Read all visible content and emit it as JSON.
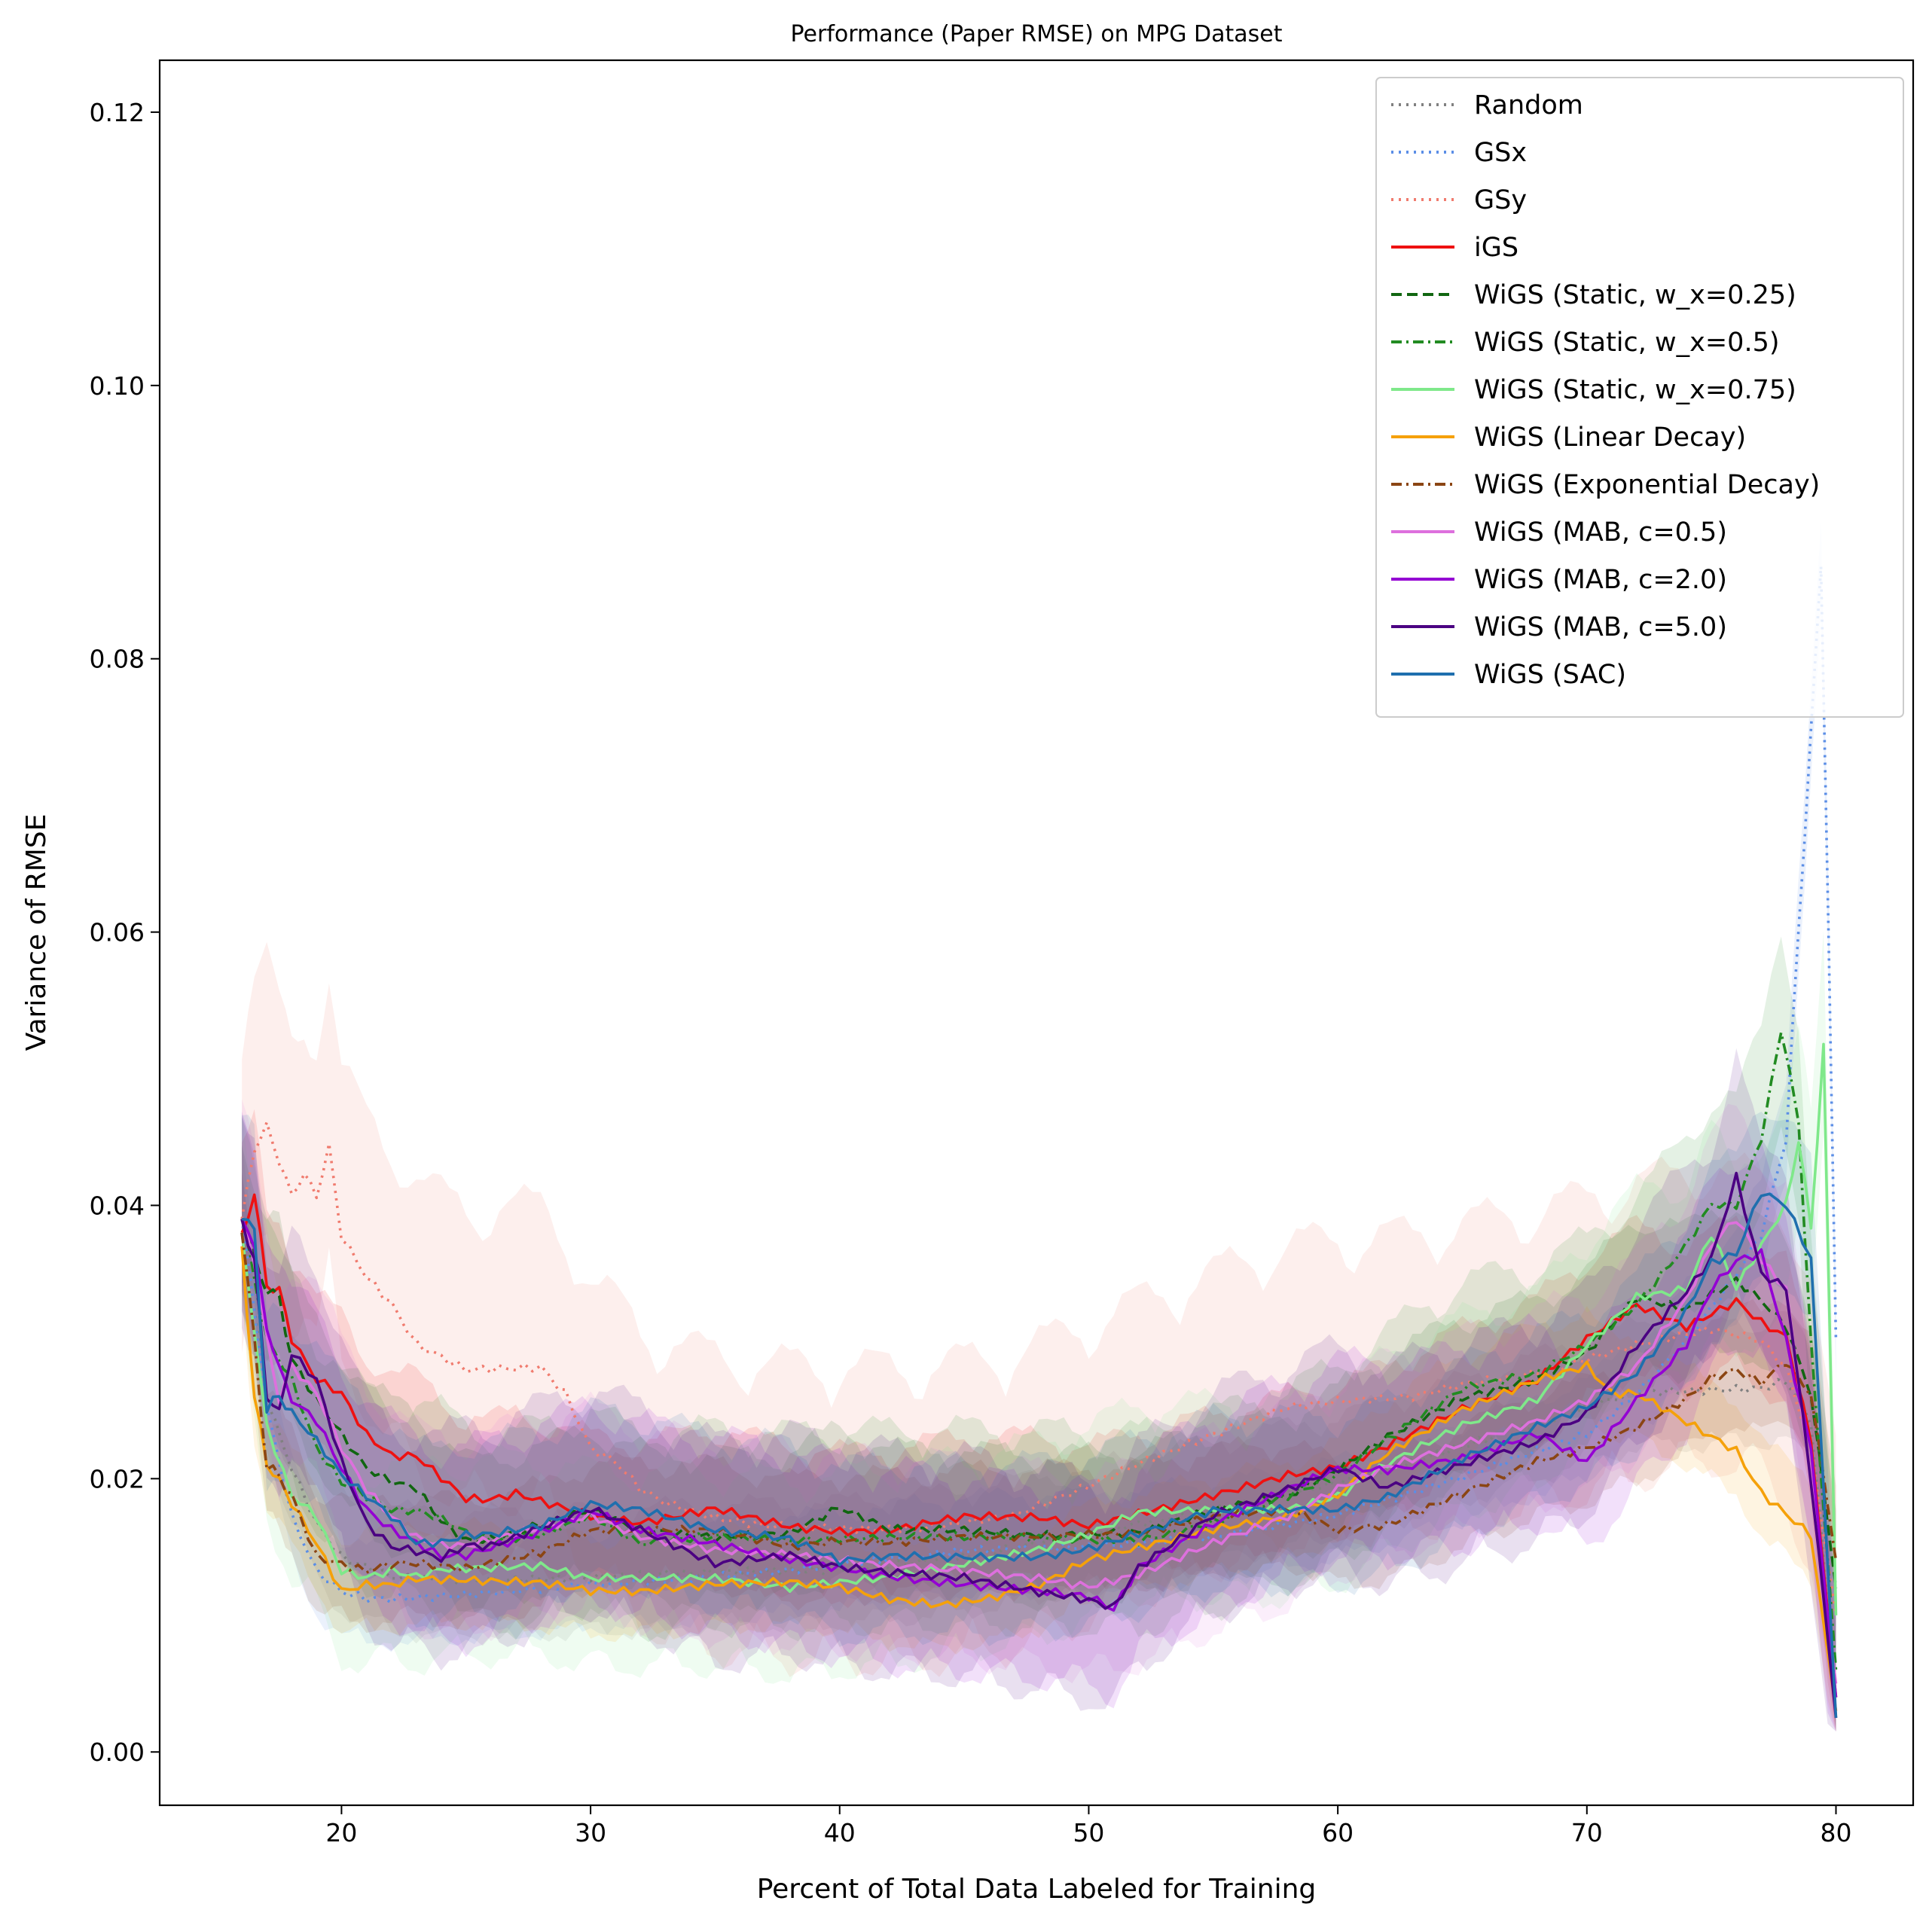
{
  "chart_data": {
    "type": "line",
    "title": "Performance (Paper RMSE) on MPG Dataset",
    "xlabel": "Percent of Total Data Labeled for Training",
    "ylabel": "Variance of RMSE",
    "xlim": [
      12.7,
      83.1
    ],
    "ylim": [
      -0.0039,
      0.1238
    ],
    "xticks": [
      20,
      30,
      40,
      50,
      60,
      70,
      80
    ],
    "xtick_labels": [
      "20",
      "30",
      "40",
      "50",
      "60",
      "70",
      "80"
    ],
    "yticks": [
      0.0,
      0.02,
      0.04,
      0.06,
      0.08,
      0.1,
      0.12
    ],
    "ytick_labels": [
      "0.00",
      "0.02",
      "0.04",
      "0.06",
      "0.08",
      "0.10",
      "0.12"
    ],
    "grid": false,
    "legend_position": "top-right",
    "shaded_band": "mean ± spread per series (translucent)",
    "series": [
      {
        "name": "Random",
        "color": "#808080",
        "style": "dotted",
        "x": [
          16,
          17,
          18,
          19,
          20,
          22,
          25,
          30,
          35,
          40,
          45,
          50,
          55,
          60,
          65,
          70,
          72,
          75,
          77,
          78,
          79,
          80
        ],
        "y": [
          0.039,
          0.026,
          0.021,
          0.017,
          0.0145,
          0.013,
          0.0125,
          0.0125,
          0.013,
          0.0135,
          0.0145,
          0.016,
          0.0175,
          0.0195,
          0.0225,
          0.0255,
          0.0265,
          0.0265,
          0.0265,
          0.027,
          0.024,
          0.004
        ],
        "band": 0.005
      },
      {
        "name": "GSx",
        "color": "#5b8ee6",
        "style": "dotted",
        "x": [
          16,
          17,
          18,
          19,
          20,
          21,
          22,
          25,
          30,
          35,
          40,
          45,
          50,
          55,
          60,
          65,
          70,
          72,
          74,
          76,
          77,
          78,
          78.5,
          79,
          79.4,
          79.7,
          80
        ],
        "y": [
          0.039,
          0.025,
          0.017,
          0.013,
          0.0115,
          0.011,
          0.011,
          0.0115,
          0.0125,
          0.013,
          0.0135,
          0.0145,
          0.015,
          0.016,
          0.0175,
          0.02,
          0.023,
          0.026,
          0.03,
          0.035,
          0.038,
          0.045,
          0.06,
          0.075,
          0.087,
          0.06,
          0.03
        ],
        "band": 0.004
      },
      {
        "name": "GSy",
        "color": "#f07b6e",
        "style": "dotted",
        "x": [
          16,
          16.5,
          17,
          17.5,
          18,
          18.5,
          19,
          19.5,
          20,
          21,
          22,
          23,
          24,
          25,
          26,
          27,
          28,
          29,
          30,
          31,
          32,
          33,
          35,
          37,
          40,
          43,
          45,
          47,
          50,
          52,
          55,
          58,
          60,
          63,
          65,
          68,
          70,
          72,
          75,
          77,
          78,
          79,
          80
        ],
        "y": [
          0.039,
          0.044,
          0.046,
          0.043,
          0.041,
          0.042,
          0.041,
          0.044,
          0.038,
          0.035,
          0.033,
          0.03,
          0.029,
          0.028,
          0.028,
          0.028,
          0.028,
          0.026,
          0.022,
          0.021,
          0.019,
          0.018,
          0.017,
          0.0165,
          0.0165,
          0.0165,
          0.017,
          0.0175,
          0.0195,
          0.021,
          0.023,
          0.025,
          0.0255,
          0.026,
          0.027,
          0.028,
          0.029,
          0.03,
          0.031,
          0.03,
          0.028,
          0.022,
          0.01
        ],
        "band": 0.012
      },
      {
        "name": "iGS",
        "color": "#ee1111",
        "style": "solid",
        "x": [
          16,
          16.5,
          17,
          17.5,
          18,
          19,
          20,
          21,
          22,
          23,
          24,
          25,
          26,
          27,
          28,
          29,
          30,
          32,
          35,
          38,
          40,
          42,
          45,
          48,
          50,
          52,
          55,
          58,
          60,
          62,
          65,
          68,
          70,
          72,
          74,
          75,
          76,
          77,
          78,
          79,
          80
        ],
        "y": [
          0.038,
          0.041,
          0.034,
          0.034,
          0.03,
          0.027,
          0.026,
          0.023,
          0.0215,
          0.0215,
          0.02,
          0.0185,
          0.0185,
          0.019,
          0.0185,
          0.018,
          0.0175,
          0.017,
          0.018,
          0.0165,
          0.016,
          0.016,
          0.017,
          0.017,
          0.0165,
          0.0175,
          0.019,
          0.0205,
          0.021,
          0.0225,
          0.025,
          0.027,
          0.03,
          0.0325,
          0.031,
          0.032,
          0.033,
          0.0315,
          0.0305,
          0.023,
          0.004
        ],
        "band": 0.006
      },
      {
        "name": "WiGS (Static, w_x=0.25)",
        "color": "#116611",
        "style": "dashed",
        "x": [
          16,
          16.5,
          17,
          17.5,
          18,
          19,
          20,
          21,
          22,
          23,
          24,
          25,
          26,
          28,
          30,
          32,
          35,
          38,
          40,
          42,
          45,
          48,
          50,
          52,
          55,
          58,
          60,
          62,
          65,
          68,
          70,
          72,
          74,
          75,
          76,
          77,
          78,
          79,
          80
        ],
        "y": [
          0.039,
          0.036,
          0.034,
          0.033,
          0.029,
          0.026,
          0.0235,
          0.021,
          0.02,
          0.0195,
          0.017,
          0.0155,
          0.0155,
          0.0165,
          0.0175,
          0.016,
          0.0155,
          0.016,
          0.018,
          0.0165,
          0.0165,
          0.016,
          0.016,
          0.016,
          0.0175,
          0.0185,
          0.0205,
          0.023,
          0.026,
          0.0275,
          0.0295,
          0.0335,
          0.0325,
          0.0335,
          0.0345,
          0.033,
          0.031,
          0.026,
          0.012
        ],
        "band": 0.006
      },
      {
        "name": "WiGS (Static, w_x=0.5)",
        "color": "#228b22",
        "style": "dashdot",
        "x": [
          16,
          17,
          18,
          19,
          20,
          21,
          22,
          23,
          24,
          25,
          26,
          28,
          30,
          32,
          35,
          38,
          40,
          42,
          45,
          48,
          50,
          52,
          55,
          58,
          60,
          62,
          65,
          68,
          70,
          72,
          74,
          75,
          76,
          77,
          77.8,
          78.5,
          79,
          80
        ],
        "y": [
          0.039,
          0.03,
          0.027,
          0.022,
          0.0195,
          0.0185,
          0.0175,
          0.0175,
          0.017,
          0.016,
          0.0155,
          0.016,
          0.0175,
          0.0155,
          0.016,
          0.0155,
          0.0155,
          0.0155,
          0.0155,
          0.0155,
          0.0155,
          0.0155,
          0.017,
          0.019,
          0.0205,
          0.023,
          0.0265,
          0.0275,
          0.0295,
          0.0325,
          0.037,
          0.04,
          0.04,
          0.045,
          0.053,
          0.046,
          0.03,
          0.006
        ],
        "band": 0.008
      },
      {
        "name": "WiGS (Static, w_x=0.75)",
        "color": "#7fe88a",
        "style": "solid",
        "x": [
          16,
          17,
          18,
          19,
          20,
          21,
          22,
          23,
          24,
          25,
          26,
          28,
          30,
          32,
          35,
          38,
          40,
          42,
          45,
          48,
          50,
          52,
          55,
          58,
          60,
          62,
          65,
          68,
          70,
          72,
          74,
          75,
          76,
          77,
          78,
          78.5,
          79,
          79.5,
          80
        ],
        "y": [
          0.038,
          0.024,
          0.019,
          0.0175,
          0.0135,
          0.013,
          0.0135,
          0.013,
          0.0135,
          0.0135,
          0.0135,
          0.0135,
          0.0125,
          0.0125,
          0.0125,
          0.012,
          0.0125,
          0.013,
          0.014,
          0.015,
          0.016,
          0.0175,
          0.0175,
          0.0175,
          0.0185,
          0.021,
          0.024,
          0.026,
          0.03,
          0.0335,
          0.034,
          0.038,
          0.034,
          0.037,
          0.04,
          0.045,
          0.038,
          0.052,
          0.01
        ],
        "band": 0.008
      },
      {
        "name": "WiGS (Linear Decay)",
        "color": "#f5a10a",
        "style": "solid",
        "x": [
          16,
          16.5,
          17,
          17.5,
          18,
          19,
          20,
          21,
          22,
          23,
          25,
          28,
          30,
          32,
          35,
          38,
          40,
          42,
          44,
          46,
          48,
          50,
          52,
          55,
          58,
          60,
          62,
          65,
          68,
          70,
          71,
          72,
          73,
          74,
          75,
          76,
          77,
          78,
          79,
          80
        ],
        "y": [
          0.037,
          0.026,
          0.021,
          0.02,
          0.018,
          0.015,
          0.0115,
          0.012,
          0.012,
          0.0125,
          0.0125,
          0.0125,
          0.012,
          0.012,
          0.0125,
          0.0125,
          0.012,
          0.011,
          0.0105,
          0.011,
          0.012,
          0.014,
          0.015,
          0.0165,
          0.0175,
          0.019,
          0.022,
          0.025,
          0.027,
          0.028,
          0.026,
          0.026,
          0.025,
          0.024,
          0.023,
          0.022,
          0.019,
          0.0175,
          0.016,
          0.003
        ],
        "band": 0.004
      },
      {
        "name": "WiGS (Exponential Decay)",
        "color": "#8b4513",
        "style": "dashdot",
        "x": [
          16,
          16.5,
          17,
          17.5,
          18,
          19,
          20,
          21,
          22,
          23,
          25,
          28,
          30,
          32,
          35,
          38,
          40,
          42,
          45,
          48,
          50,
          52,
          55,
          58,
          60,
          62,
          65,
          68,
          70,
          72,
          74,
          75,
          76,
          77,
          78,
          79,
          80
        ],
        "y": [
          0.038,
          0.03,
          0.021,
          0.02,
          0.019,
          0.0145,
          0.014,
          0.0135,
          0.014,
          0.014,
          0.0135,
          0.0145,
          0.016,
          0.016,
          0.016,
          0.015,
          0.0155,
          0.0155,
          0.016,
          0.016,
          0.016,
          0.016,
          0.017,
          0.0175,
          0.016,
          0.0165,
          0.019,
          0.0215,
          0.0225,
          0.024,
          0.026,
          0.0275,
          0.028,
          0.027,
          0.0285,
          0.026,
          0.014
        ],
        "band": 0.005
      },
      {
        "name": "WiGS (MAB, c=0.5)",
        "color": "#dd70dd",
        "style": "solid",
        "x": [
          16,
          16.5,
          17,
          17.5,
          18,
          19,
          20,
          21,
          22,
          23,
          24,
          25,
          26,
          28,
          30,
          32,
          35,
          38,
          40,
          42,
          45,
          48,
          50,
          52,
          55,
          58,
          60,
          62,
          65,
          68,
          70,
          72,
          74,
          75,
          76,
          77,
          78,
          79,
          80
        ],
        "y": [
          0.039,
          0.036,
          0.03,
          0.026,
          0.028,
          0.026,
          0.022,
          0.019,
          0.017,
          0.0155,
          0.015,
          0.015,
          0.0155,
          0.0165,
          0.0175,
          0.016,
          0.015,
          0.0145,
          0.014,
          0.0135,
          0.013,
          0.0125,
          0.012,
          0.013,
          0.0155,
          0.0175,
          0.0195,
          0.021,
          0.0225,
          0.024,
          0.0255,
          0.028,
          0.033,
          0.037,
          0.039,
          0.036,
          0.034,
          0.02,
          0.005
        ],
        "band": 0.008
      },
      {
        "name": "WiGS (MAB, c=2.0)",
        "color": "#9400d3",
        "style": "solid",
        "x": [
          16,
          16.5,
          17,
          17.5,
          18,
          19,
          20,
          21,
          22,
          23,
          24,
          25,
          26,
          28,
          30,
          32,
          35,
          38,
          40,
          42,
          45,
          48,
          50,
          51,
          52,
          55,
          58,
          60,
          62,
          65,
          68,
          70,
          72,
          74,
          75,
          76,
          77,
          78,
          79,
          80
        ],
        "y": [
          0.039,
          0.037,
          0.031,
          0.028,
          0.026,
          0.0245,
          0.021,
          0.018,
          0.0165,
          0.0155,
          0.0145,
          0.0145,
          0.015,
          0.016,
          0.0175,
          0.016,
          0.015,
          0.014,
          0.0135,
          0.013,
          0.0125,
          0.012,
          0.0115,
          0.0105,
          0.0135,
          0.0165,
          0.019,
          0.0205,
          0.0205,
          0.0215,
          0.0235,
          0.0215,
          0.026,
          0.03,
          0.034,
          0.036,
          0.0365,
          0.03,
          0.022,
          0.004
        ],
        "band": 0.008
      },
      {
        "name": "WiGS (MAB, c=5.0)",
        "color": "#4b0082",
        "style": "solid",
        "x": [
          16,
          16.5,
          17,
          17.5,
          18,
          19,
          20,
          21,
          22,
          23,
          24,
          25,
          26,
          28,
          30,
          32,
          35,
          38,
          40,
          42,
          45,
          48,
          50,
          51,
          52,
          55,
          58,
          60,
          62,
          65,
          68,
          70,
          72,
          74,
          75,
          76,
          77,
          78,
          79,
          80
        ],
        "y": [
          0.039,
          0.036,
          0.026,
          0.025,
          0.029,
          0.027,
          0.021,
          0.0165,
          0.0148,
          0.0145,
          0.014,
          0.015,
          0.015,
          0.0165,
          0.018,
          0.0165,
          0.014,
          0.0145,
          0.0135,
          0.013,
          0.0125,
          0.0115,
          0.011,
          0.0105,
          0.0135,
          0.0175,
          0.0195,
          0.021,
          0.0195,
          0.021,
          0.0225,
          0.0245,
          0.0295,
          0.0335,
          0.036,
          0.042,
          0.035,
          0.034,
          0.02,
          0.0025
        ],
        "band": 0.009
      },
      {
        "name": "WiGS (SAC)",
        "color": "#1f6fae",
        "style": "solid",
        "x": [
          16,
          16.5,
          17,
          17.5,
          18,
          19,
          20,
          21,
          22,
          23,
          24,
          25,
          26,
          28,
          30,
          32,
          35,
          38,
          40,
          42,
          45,
          48,
          50,
          52,
          55,
          58,
          60,
          62,
          65,
          68,
          70,
          72,
          74,
          75,
          76,
          77,
          78,
          79,
          80
        ],
        "y": [
          0.039,
          0.038,
          0.025,
          0.026,
          0.025,
          0.023,
          0.0205,
          0.019,
          0.0175,
          0.0155,
          0.0155,
          0.016,
          0.016,
          0.0165,
          0.018,
          0.0175,
          0.016,
          0.0155,
          0.014,
          0.0145,
          0.0145,
          0.0145,
          0.015,
          0.016,
          0.0175,
          0.0175,
          0.0175,
          0.0185,
          0.0215,
          0.024,
          0.0255,
          0.028,
          0.0325,
          0.036,
          0.0365,
          0.041,
          0.04,
          0.036,
          0.0025
        ],
        "band": 0.007
      }
    ]
  }
}
